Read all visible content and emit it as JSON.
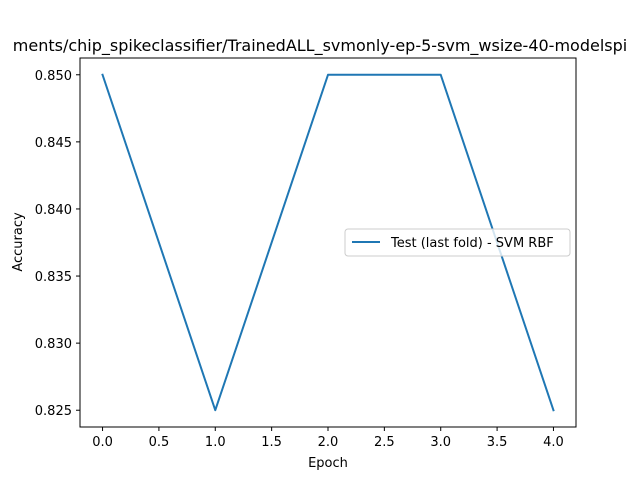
{
  "chart_data": {
    "type": "line",
    "title": "ments/chip_spikeclassifier/TrainedALL_svmonly-ep-5-svm_wsize-40-modelspi",
    "xlabel": "Epoch",
    "ylabel": "Accuracy",
    "x": [
      0,
      1,
      2,
      3,
      4
    ],
    "series": [
      {
        "name": "Test (last fold) - SVM RBF",
        "values": [
          0.85,
          0.825,
          0.85,
          0.85,
          0.825
        ],
        "color": "#1f77b4"
      }
    ],
    "xlim": [
      -0.2,
      4.2
    ],
    "ylim": [
      0.82375,
      0.85125
    ],
    "xticks": [
      0.0,
      0.5,
      1.0,
      1.5,
      2.0,
      2.5,
      3.0,
      3.5,
      4.0
    ],
    "xtick_labels": [
      "0.0",
      "0.5",
      "1.0",
      "1.5",
      "2.0",
      "2.5",
      "3.0",
      "3.5",
      "4.0"
    ],
    "yticks": [
      0.825,
      0.83,
      0.835,
      0.84,
      0.845,
      0.85
    ],
    "ytick_labels": [
      "0.825",
      "0.830",
      "0.835",
      "0.840",
      "0.845",
      "0.850"
    ],
    "grid": false,
    "legend_position": "center-right"
  }
}
